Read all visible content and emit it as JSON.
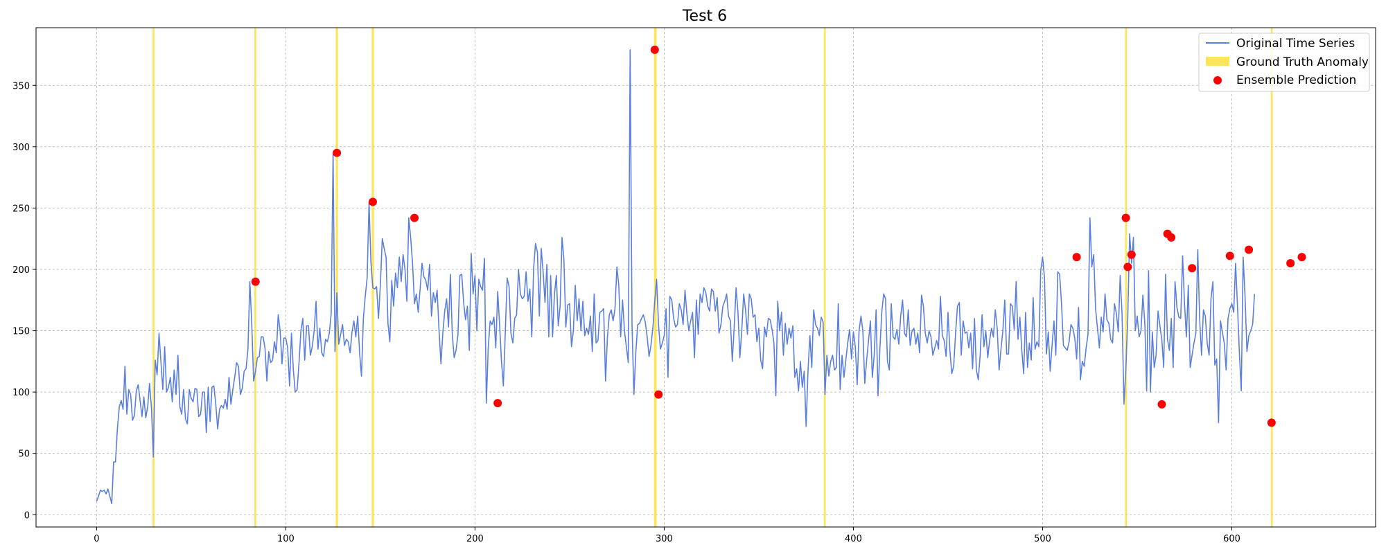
{
  "chart_data": {
    "type": "line",
    "title": "Test 6",
    "xlabel": "",
    "ylabel": "",
    "xlim": [
      -32,
      676
    ],
    "ylim": [
      -10,
      397
    ],
    "grid": true,
    "legend_placement": "top-right",
    "x_ticks": [
      0,
      100,
      200,
      300,
      400,
      500,
      600
    ],
    "y_ticks": [
      0,
      50,
      100,
      150,
      200,
      250,
      300,
      350
    ],
    "colors": {
      "series": "#5b7fde",
      "anomaly": "#ffd700",
      "prediction": "#ff0000"
    },
    "legend": [
      {
        "label": "Original Time Series",
        "kind": "line"
      },
      {
        "label": "Ground Truth Anomaly",
        "kind": "band"
      },
      {
        "label": "Ensemble Prediction",
        "kind": "dot"
      }
    ],
    "series": [
      {
        "name": "Original Time Series",
        "x_start": 0,
        "values": [
          11,
          15,
          20,
          19,
          20,
          17,
          21,
          15,
          9,
          43,
          43,
          70,
          88,
          93,
          86,
          121,
          82,
          102,
          98,
          77,
          81,
          101,
          106,
          93,
          80,
          96,
          79,
          88,
          107,
          87,
          47,
          126,
          114,
          148,
          125,
          102,
          137,
          100,
          104,
          112,
          92,
          118,
          98,
          130,
          88,
          82,
          102,
          78,
          74,
          102,
          95,
          92,
          103,
          102,
          80,
          82,
          100,
          100,
          67,
          104,
          76,
          104,
          105,
          90,
          70,
          86,
          89,
          87,
          94,
          86,
          112,
          90,
          102,
          112,
          124,
          121,
          98,
          103,
          117,
          119,
          135,
          190,
          156,
          109,
          117,
          128,
          129,
          145,
          145,
          136,
          109,
          133,
          124,
          126,
          141,
          132,
          163,
          150,
          123,
          144,
          144,
          136,
          105,
          148,
          118,
          100,
          102,
          124,
          150,
          160,
          126,
          154,
          154,
          130,
          137,
          150,
          174,
          135,
          152,
          132,
          129,
          143,
          141,
          148,
          164,
          295,
          133,
          181,
          139,
          147,
          155,
          138,
          143,
          141,
          132,
          149,
          158,
          145,
          162,
          132,
          113,
          160,
          178,
          193,
          255,
          206,
          185,
          184,
          186,
          160,
          188,
          225,
          217,
          210,
          156,
          141,
          191,
          170,
          197,
          185,
          210,
          190,
          212,
          200,
          174,
          242,
          226,
          205,
          172,
          180,
          165,
          184,
          205,
          194,
          191,
          183,
          204,
          162,
          181,
          173,
          183,
          150,
          123,
          148,
          166,
          176,
          153,
          196,
          147,
          128,
          134,
          147,
          195,
          196,
          173,
          159,
          170,
          134,
          213,
          180,
          195,
          150,
          192,
          186,
          183,
          209,
          91,
          136,
          158,
          155,
          161,
          136,
          182,
          155,
          125,
          105,
          148,
          193,
          186,
          148,
          140,
          160,
          163,
          200,
          180,
          176,
          178,
          198,
          174,
          184,
          145,
          201,
          221,
          214,
          162,
          217,
          198,
          173,
          204,
          145,
          195,
          145,
          180,
          195,
          154,
          170,
          226,
          208,
          153,
          171,
          172,
          137,
          150,
          187,
          158,
          176,
          150,
          174,
          146,
          152,
          147,
          162,
          133,
          180,
          140,
          142,
          165,
          166,
          168,
          109,
          145,
          163,
          167,
          158,
          168,
          202,
          187,
          145,
          175,
          150,
          137,
          124,
          379,
          154,
          98,
          132,
          155,
          156,
          160,
          163,
          157,
          145,
          129,
          138,
          152,
          174,
          192,
          155,
          135,
          140,
          146,
          168,
          112,
          178,
          175,
          160,
          153,
          155,
          172,
          167,
          155,
          183,
          164,
          150,
          158,
          165,
          128,
          175,
          147,
          180,
          173,
          185,
          181,
          170,
          166,
          184,
          182,
          166,
          177,
          148,
          155,
          170,
          174,
          180,
          162,
          158,
          125,
          153,
          185,
          165,
          128,
          150,
          180,
          167,
          147,
          180,
          176,
          161,
          163,
          141,
          152,
          126,
          119,
          153,
          145,
          160,
          159,
          151,
          140,
          97,
          174,
          150,
          165,
          130,
          156,
          139,
          152,
          144,
          154,
          112,
          119,
          101,
          125,
          104,
          117,
          72,
          117,
          146,
          120,
          167,
          155,
          152,
          146,
          161,
          157,
          98,
          130,
          113,
          125,
          130,
          118,
          120,
          172,
          102,
          130,
          112,
          126,
          140,
          151,
          127,
          149,
          137,
          106,
          150,
          162,
          150,
          107,
          126,
          142,
          158,
          112,
          130,
          167,
          97,
          135,
          165,
          180,
          176,
          125,
          118,
          172,
          145,
          143,
          151,
          139,
          162,
          175,
          148,
          145,
          167,
          138,
          150,
          152,
          139,
          148,
          132,
          179,
          170,
          148,
          140,
          150,
          145,
          130,
          136,
          142,
          135,
          178,
          146,
          142,
          129,
          165,
          134,
          115,
          121,
          148,
          170,
          173,
          130,
          158,
          148,
          149,
          136,
          148,
          119,
          160,
          118,
          110,
          130,
          163,
          137,
          150,
          128,
          142,
          152,
          145,
          167,
          152,
          118,
          135,
          150,
          175,
          131,
          131,
          172,
          170,
          151,
          190,
          143,
          161,
          134,
          115,
          165,
          120,
          140,
          126,
          177,
          135,
          141,
          137,
          199,
          210,
          193,
          131,
          149,
          117,
          138,
          158,
          130,
          198,
          196,
          172,
          138,
          136,
          134,
          141,
          155,
          152,
          144,
          127,
          169,
          110,
          125,
          121,
          136,
          147,
          242,
          202,
          212,
          168,
          152,
          136,
          161,
          149,
          180,
          159,
          156,
          143,
          140,
          172,
          164,
          149,
          195,
          163,
          90,
          119,
          160,
          229,
          205,
          226,
          150,
          162,
          145,
          150,
          179,
          157,
          101,
          199,
          100,
          149,
          120,
          130,
          166,
          154,
          143,
          120,
          196,
          143,
          134,
          160,
          120,
          190,
          169,
          161,
          160,
          211,
          172,
          145,
          187,
          120,
          130,
          140,
          148,
          216,
          160,
          130,
          167,
          162,
          140,
          130,
          176,
          190,
          122,
          127,
          75,
          158,
          149,
          140,
          118,
          160,
          168,
          172,
          165,
          205,
          170,
          132,
          101,
          210,
          178,
          133,
          146,
          150,
          155,
          180
        ]
      }
    ],
    "anomaly_bands": [
      {
        "x0": 29.6,
        "x1": 30.6
      },
      {
        "x0": 83.4,
        "x1": 84.4
      },
      {
        "x0": 126.4,
        "x1": 127.6
      },
      {
        "x0": 145.4,
        "x1": 146.6
      },
      {
        "x0": 294.6,
        "x1": 296.0
      },
      {
        "x0": 384.4,
        "x1": 385.4
      },
      {
        "x0": 543.6,
        "x1": 544.6
      },
      {
        "x0": 620.6,
        "x1": 621.6
      }
    ],
    "predictions": [
      {
        "x": 84,
        "y": 190
      },
      {
        "x": 127,
        "y": 295
      },
      {
        "x": 146,
        "y": 255
      },
      {
        "x": 168,
        "y": 242
      },
      {
        "x": 212,
        "y": 91
      },
      {
        "x": 295,
        "y": 379
      },
      {
        "x": 297,
        "y": 98
      },
      {
        "x": 518,
        "y": 210
      },
      {
        "x": 544,
        "y": 242
      },
      {
        "x": 545,
        "y": 202
      },
      {
        "x": 547,
        "y": 212
      },
      {
        "x": 563,
        "y": 90
      },
      {
        "x": 566,
        "y": 229
      },
      {
        "x": 568,
        "y": 226
      },
      {
        "x": 579,
        "y": 201
      },
      {
        "x": 599,
        "y": 211
      },
      {
        "x": 609,
        "y": 216
      },
      {
        "x": 621,
        "y": 75
      },
      {
        "x": 631,
        "y": 205
      },
      {
        "x": 637,
        "y": 210
      }
    ]
  }
}
